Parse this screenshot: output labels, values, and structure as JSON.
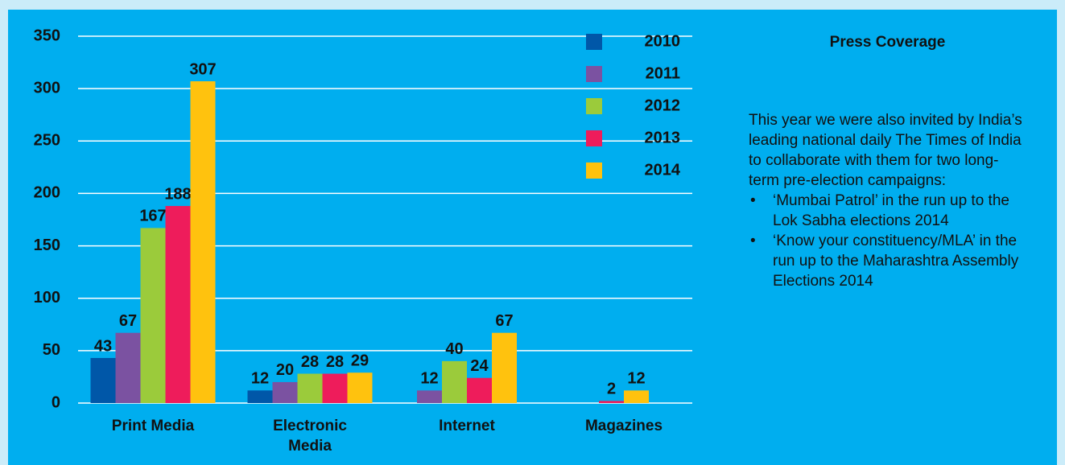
{
  "chart_data": {
    "type": "bar",
    "categories": [
      "Print Media",
      "Electronic Media",
      "Internet",
      "Magazines"
    ],
    "series": [
      {
        "name": "2010",
        "color": "#0057a8",
        "values": [
          43,
          12,
          null,
          null
        ]
      },
      {
        "name": "2011",
        "color": "#7b52a1",
        "values": [
          67,
          20,
          12,
          null
        ]
      },
      {
        "name": "2012",
        "color": "#9bcb3b",
        "values": [
          167,
          28,
          40,
          null
        ]
      },
      {
        "name": "2013",
        "color": "#ee1c5b",
        "values": [
          188,
          28,
          24,
          2
        ]
      },
      {
        "name": "2014",
        "color": "#ffc20e",
        "values": [
          307,
          29,
          67,
          12
        ]
      }
    ],
    "ylim": [
      0,
      350
    ],
    "yticks": [
      0,
      50,
      100,
      150,
      200,
      250,
      300,
      350
    ],
    "grid": true,
    "legend": "top-right"
  },
  "panel": {
    "title": "Press Coverage",
    "paragraph": "This year we were also invited by India’s leading national daily The Times of India to collaborate with them for two long-term pre-election campaigns:",
    "bullets": [
      "‘Mumbai Patrol’ in the run up to the Lok Sabha elections 2014",
      "‘Know your constituency/MLA’ in the run up to the Maharashtra Assembly Elections 2014"
    ]
  }
}
